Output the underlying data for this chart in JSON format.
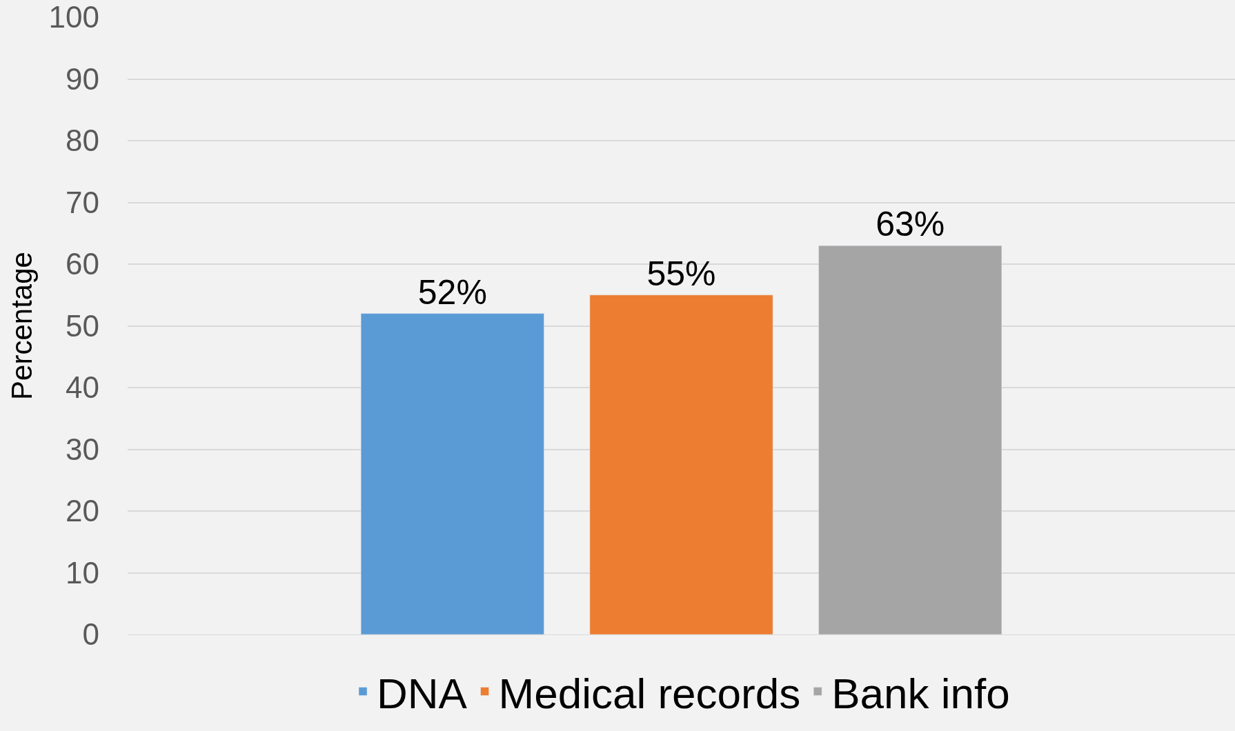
{
  "chart_data": {
    "type": "bar",
    "ylabel": "Percentage",
    "categories": [
      null
    ],
    "series": [
      {
        "name": "DNA",
        "color": "#5b9bd5",
        "values": [
          52
        ],
        "value_labels": [
          "52%"
        ]
      },
      {
        "name": "Medical records",
        "color": "#ed7d31",
        "values": [
          55
        ],
        "value_labels": [
          "55%"
        ]
      },
      {
        "name": "Bank info",
        "color": "#a5a5a5",
        "values": [
          63
        ],
        "value_labels": [
          "63%"
        ]
      }
    ],
    "ylim": [
      0,
      100
    ],
    "yticks": [
      0,
      10,
      20,
      30,
      40,
      50,
      60,
      70,
      80,
      90,
      100
    ],
    "grid": "y",
    "legend": "bottom"
  }
}
